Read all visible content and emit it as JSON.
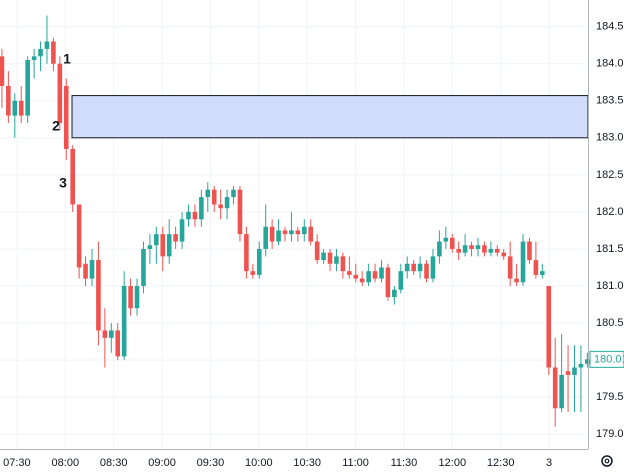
{
  "chart_data": {
    "type": "candlestick",
    "up_color": "#26a69a",
    "down_color": "#ef5350",
    "grid": true,
    "open": [
      184.1,
      183.7,
      183.3,
      183.5,
      183.3,
      184.05,
      184.1,
      184.2,
      184.3,
      184.0,
      183.7,
      182.85,
      182.1,
      181.3,
      181.1,
      181.35,
      180.4,
      180.3,
      180.4,
      180.05,
      181.0,
      180.7,
      181.0,
      181.5,
      181.55,
      181.7,
      181.4,
      181.7,
      181.6,
      181.9,
      182.0,
      181.9,
      182.2,
      182.3,
      182.1,
      182.05,
      182.2,
      182.3,
      181.7,
      181.2,
      181.15,
      181.5,
      181.8,
      181.6,
      181.75,
      181.7,
      181.75,
      181.7,
      181.8,
      181.6,
      181.35,
      181.45,
      181.3,
      181.4,
      181.2,
      181.15,
      181.1,
      181.05,
      181.2,
      181.1,
      181.25,
      180.85,
      180.95,
      181.2,
      181.3,
      181.2,
      181.3,
      181.1,
      181.4,
      181.6,
      181.65,
      181.5,
      181.45,
      181.55,
      181.5,
      181.55,
      181.45,
      181.5,
      181.45,
      181.4,
      181.1,
      181.05,
      181.6,
      181.35,
      181.15,
      181.0,
      179.9,
      179.35,
      179.85,
      179.8,
      179.9,
      179.95
    ],
    "high": [
      184.2,
      183.9,
      183.6,
      183.7,
      184.1,
      184.2,
      184.3,
      184.65,
      184.35,
      184.1,
      183.8,
      182.9,
      182.1,
      181.4,
      181.5,
      181.6,
      180.7,
      180.5,
      180.5,
      181.2,
      181.1,
      181.1,
      181.6,
      181.7,
      181.8,
      181.8,
      181.9,
      181.8,
      182.0,
      182.1,
      182.1,
      182.3,
      182.4,
      182.35,
      182.3,
      182.3,
      182.35,
      182.35,
      181.8,
      181.3,
      181.6,
      182.1,
      181.9,
      181.9,
      181.8,
      182.0,
      181.8,
      181.9,
      181.9,
      181.7,
      181.5,
      181.5,
      181.5,
      181.45,
      181.4,
      181.3,
      181.2,
      181.3,
      181.3,
      181.35,
      181.3,
      181.0,
      181.3,
      181.4,
      181.35,
      181.4,
      181.35,
      181.5,
      181.75,
      181.8,
      181.7,
      181.6,
      181.7,
      181.6,
      181.65,
      181.6,
      181.6,
      181.55,
      181.5,
      181.6,
      181.3,
      181.7,
      181.65,
      181.6,
      181.3,
      181.0,
      180.3,
      180.35,
      180.2,
      180.2,
      180.2,
      180.1
    ],
    "low": [
      183.4,
      183.2,
      183.0,
      183.2,
      183.2,
      183.8,
      183.9,
      184.0,
      183.9,
      183.1,
      182.7,
      182.0,
      181.1,
      181.0,
      181.0,
      180.2,
      179.9,
      180.1,
      180.0,
      180.0,
      180.6,
      180.6,
      180.9,
      181.3,
      181.3,
      181.2,
      181.3,
      181.5,
      181.5,
      181.8,
      181.8,
      181.8,
      182.0,
      182.0,
      181.9,
      181.9,
      182.1,
      181.6,
      181.1,
      181.1,
      181.1,
      181.4,
      181.5,
      181.55,
      181.6,
      181.6,
      181.6,
      181.6,
      181.55,
      181.3,
      181.3,
      181.2,
      181.2,
      181.1,
      181.1,
      181.05,
      181.0,
      181.0,
      181.05,
      181.05,
      180.8,
      180.75,
      180.9,
      181.1,
      181.15,
      181.1,
      181.05,
      181.05,
      181.3,
      181.5,
      181.45,
      181.35,
      181.4,
      181.4,
      181.4,
      181.4,
      181.4,
      181.4,
      181.35,
      181.0,
      181.0,
      181.0,
      181.3,
      181.1,
      181.1,
      179.8,
      179.1,
      179.3,
      179.3,
      179.3,
      179.3,
      179.9
    ],
    "close": [
      183.7,
      183.3,
      183.5,
      183.3,
      184.05,
      184.1,
      184.2,
      184.3,
      184.0,
      183.2,
      182.85,
      182.1,
      181.25,
      181.1,
      181.35,
      180.4,
      180.3,
      180.4,
      180.05,
      181.0,
      180.7,
      181.0,
      181.5,
      181.55,
      181.7,
      181.4,
      181.7,
      181.6,
      181.9,
      182.0,
      181.9,
      182.2,
      182.3,
      182.1,
      182.05,
      182.2,
      182.3,
      181.7,
      181.2,
      181.15,
      181.5,
      181.8,
      181.6,
      181.75,
      181.7,
      181.75,
      181.7,
      181.8,
      181.6,
      181.35,
      181.45,
      181.3,
      181.4,
      181.2,
      181.15,
      181.1,
      181.05,
      181.2,
      181.1,
      181.25,
      180.85,
      180.95,
      181.2,
      181.3,
      181.2,
      181.3,
      181.1,
      181.4,
      181.6,
      181.65,
      181.5,
      181.45,
      181.55,
      181.5,
      181.55,
      181.45,
      181.5,
      181.45,
      181.4,
      181.1,
      181.05,
      181.6,
      181.35,
      181.15,
      181.2,
      179.9,
      179.35,
      179.8,
      179.8,
      179.9,
      179.95,
      180.01
    ],
    "xlim": [
      -0.3,
      91.1
    ],
    "xticks": [
      {
        "value": 2.33,
        "label": "07:30"
      },
      {
        "value": 9.85,
        "label": "08:00"
      },
      {
        "value": 17.37,
        "label": "08:30"
      },
      {
        "value": 24.89,
        "label": "09:00"
      },
      {
        "value": 32.41,
        "label": "09:30"
      },
      {
        "value": 39.93,
        "label": "10:00"
      },
      {
        "value": 47.45,
        "label": "10:30"
      },
      {
        "value": 54.97,
        "label": "11:00"
      },
      {
        "value": 62.49,
        "label": "11:30"
      },
      {
        "value": 70.01,
        "label": "12:00"
      },
      {
        "value": 77.53,
        "label": "12:30"
      },
      {
        "value": 85.05,
        "label": "3"
      }
    ],
    "ylim": [
      178.8,
      184.86
    ],
    "yticks": [
      {
        "value": 179.0,
        "label": "179.00"
      },
      {
        "value": 179.5,
        "label": "179.50"
      },
      {
        "value": 180.0,
        "label": "180.00"
      },
      {
        "value": 180.5,
        "label": "180.50"
      },
      {
        "value": 181.0,
        "label": "181.00"
      },
      {
        "value": 181.5,
        "label": "181.50"
      },
      {
        "value": 182.0,
        "label": "182.00"
      },
      {
        "value": 182.5,
        "label": "182.50"
      },
      {
        "value": 183.0,
        "label": "183.00"
      },
      {
        "value": 183.5,
        "label": "183.50"
      },
      {
        "value": 184.0,
        "label": "184.00"
      },
      {
        "value": 184.5,
        "label": "184.50"
      }
    ],
    "last_price": 180.01,
    "zone_low": 183.0,
    "zone_high": 183.57,
    "annotations": [
      "1",
      "2",
      "3"
    ]
  }
}
